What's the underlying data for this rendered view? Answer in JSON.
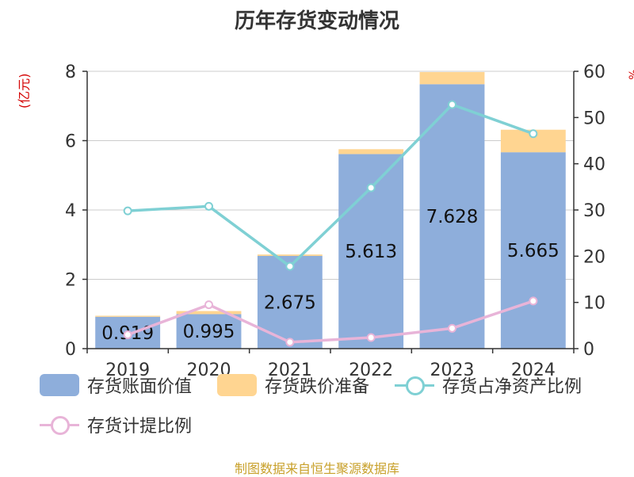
{
  "title": "历年存货变动情况",
  "source": "制图数据来自恒生聚源数据库",
  "chart_data": {
    "type": "bar",
    "categories": [
      "2019",
      "2020",
      "2021",
      "2022",
      "2023",
      "2024"
    ],
    "series": [
      {
        "name": "存货账面价值",
        "kind": "bar",
        "axis": "left",
        "color": "#8eaedb",
        "values": [
          0.919,
          0.995,
          2.675,
          5.613,
          7.628,
          5.665
        ],
        "labels": [
          "0.919",
          "0.995",
          "2.675",
          "5.613",
          "7.628",
          "5.665"
        ]
      },
      {
        "name": "存货跌价准备",
        "kind": "bar",
        "axis": "left",
        "color": "#ffd591",
        "values": [
          0.03,
          0.09,
          0.04,
          0.14,
          0.35,
          0.65
        ]
      },
      {
        "name": "存货占净资产比例",
        "kind": "line",
        "axis": "right",
        "color": "#7fd0d4",
        "values": [
          29.8,
          30.8,
          17.8,
          34.8,
          52.8,
          46.5
        ]
      },
      {
        "name": "存货计提比例",
        "kind": "line",
        "axis": "right",
        "color": "#e8b4d8",
        "values": [
          3.0,
          9.5,
          1.4,
          2.4,
          4.4,
          10.3
        ]
      }
    ],
    "left_axis": {
      "unit": "(亿元)",
      "ylim": [
        0,
        8
      ],
      "ticks": [
        "0",
        "2",
        "4",
        "6",
        "8"
      ]
    },
    "right_axis": {
      "unit": "%",
      "ylim": [
        0,
        60
      ],
      "ticks": [
        "0",
        "10",
        "20",
        "30",
        "40",
        "50",
        "60"
      ]
    },
    "grid": true,
    "legend_position": "bottom"
  }
}
